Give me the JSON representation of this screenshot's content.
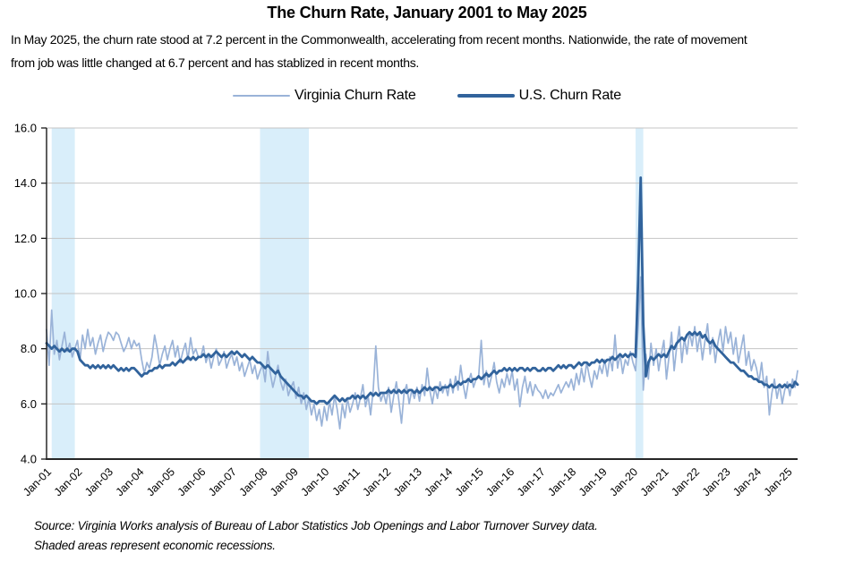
{
  "title": "The Churn Rate, January 2001 to May 2025",
  "subtitle": {
    "line1": "In May 2025, the churn rate stood at 7.2 percent in the Commonwealth, accelerating from recent months. Nationwide, the rate of movement",
    "line2": "from job was little changed at 6.7 percent and has stablized in recent months."
  },
  "source": {
    "line1": "Source: Virginia Works analysis of Bureau of Labor Statistics Job Openings and Labor Turnover Survey data.",
    "line2": "Shaded areas represent economic recessions."
  },
  "chart_data": {
    "type": "line",
    "title": "The Churn Rate, January 2001 to May 2025",
    "x_start": "2001-01",
    "x_end": "2025-05",
    "x_tick_labels": [
      "Jan-01",
      "Jan-02",
      "Jan-03",
      "Jan-04",
      "Jan-05",
      "Jan-06",
      "Jan-07",
      "Jan-08",
      "Jan-09",
      "Jan-10",
      "Jan-11",
      "Jan-12",
      "Jan-13",
      "Jan-14",
      "Jan-15",
      "Jan-16",
      "Jan-17",
      "Jan-18",
      "Jan-19",
      "Jan-20",
      "Jan-21",
      "Jan-22",
      "Jan-23",
      "Jan-24",
      "Jan-25"
    ],
    "ylim": [
      4.0,
      16.0
    ],
    "y_ticks": [
      4.0,
      6.0,
      8.0,
      10.0,
      12.0,
      14.0,
      16.0
    ],
    "grid": "horizontal",
    "grid_color": "#C4C4C4",
    "axis_color": "#1a1a1a",
    "band_color": "#D9EEFA",
    "recession_bands": [
      {
        "from": "2001-03",
        "to": "2001-11"
      },
      {
        "from": "2007-12",
        "to": "2009-06"
      },
      {
        "from": "2020-02",
        "to": "2020-04"
      }
    ],
    "legend_position": "top-center",
    "series": [
      {
        "name": "Virginia Churn Rate",
        "color": "#9AB3D8",
        "width": 1.7,
        "values": [
          8.7,
          7.4,
          9.4,
          7.8,
          8.3,
          7.6,
          8.1,
          8.6,
          7.9,
          8.2,
          7.7,
          8.0,
          8.3,
          7.6,
          8.5,
          8.0,
          8.7,
          8.1,
          8.4,
          7.8,
          8.2,
          8.5,
          7.9,
          8.3,
          8.6,
          8.5,
          8.3,
          8.6,
          8.5,
          8.2,
          7.9,
          8.1,
          8.4,
          8.0,
          8.3,
          8.1,
          8.2,
          7.6,
          7.1,
          7.5,
          7.3,
          7.7,
          8.5,
          8.0,
          7.4,
          7.8,
          8.1,
          7.6,
          8.0,
          8.3,
          7.7,
          8.1,
          7.5,
          7.9,
          8.2,
          7.6,
          8.4,
          7.8,
          8.0,
          7.7,
          7.7,
          8.1,
          7.5,
          7.8,
          7.3,
          7.7,
          8.0,
          7.4,
          7.6,
          7.9,
          7.3,
          7.6,
          7.8,
          7.4,
          7.7,
          7.2,
          7.5,
          7.0,
          7.3,
          7.6,
          7.1,
          7.4,
          6.9,
          7.2,
          7.4,
          6.8,
          7.9,
          7.1,
          6.6,
          7.0,
          7.4,
          6.8,
          6.5,
          6.9,
          6.3,
          6.6,
          6.8,
          6.2,
          6.6,
          6.0,
          6.4,
          5.8,
          6.2,
          5.6,
          6.0,
          5.4,
          5.8,
          5.2,
          5.9,
          5.4,
          6.1,
          5.6,
          6.3,
          5.8,
          5.1,
          6.0,
          5.5,
          6.2,
          5.7,
          6.0,
          6.4,
          5.8,
          6.2,
          6.7,
          5.9,
          6.3,
          5.6,
          6.5,
          8.1,
          6.6,
          6.1,
          6.4,
          6.0,
          6.6,
          5.7,
          6.3,
          6.8,
          6.1,
          5.3,
          6.4,
          6.7,
          6.0,
          6.5,
          6.2,
          6.6,
          6.1,
          6.7,
          6.3,
          7.3,
          6.5,
          6.0,
          6.6,
          6.2,
          6.8,
          6.4,
          6.7,
          6.3,
          6.9,
          6.4,
          7.0,
          6.5,
          7.4,
          6.7,
          6.2,
          6.8,
          7.1,
          6.6,
          6.9,
          7.0,
          8.3,
          6.7,
          7.2,
          6.6,
          7.0,
          7.5,
          6.8,
          6.4,
          6.9,
          6.6,
          7.1,
          6.7,
          7.2,
          6.5,
          6.9,
          5.9,
          6.6,
          7.0,
          6.4,
          6.8,
          6.3,
          6.7,
          6.5,
          6.4,
          6.2,
          6.5,
          6.2,
          6.4,
          6.3,
          6.5,
          6.7,
          6.4,
          6.6,
          6.8,
          6.6,
          6.9,
          6.5,
          7.1,
          6.7,
          7.3,
          6.8,
          7.5,
          7.0,
          6.6,
          7.2,
          6.9,
          7.4,
          7.1,
          7.6,
          7.0,
          7.7,
          7.2,
          8.5,
          7.3,
          7.8,
          7.1,
          7.6,
          7.4,
          7.9,
          7.5,
          7.2,
          8.8,
          10.6,
          6.5,
          7.8,
          6.9,
          8.2,
          7.4,
          8.0,
          7.2,
          7.8,
          8.3,
          6.9,
          7.7,
          8.6,
          7.2,
          8.1,
          8.8,
          7.5,
          8.4,
          7.8,
          8.6,
          8.1,
          8.8,
          7.9,
          8.5,
          7.6,
          8.3,
          8.9,
          7.8,
          8.4,
          7.5,
          8.2,
          8.7,
          7.9,
          8.8,
          8.2,
          8.6,
          7.8,
          8.4,
          7.5,
          8.0,
          8.5,
          7.4,
          7.9,
          7.2,
          7.6,
          7.3,
          6.8,
          7.5,
          6.6,
          7.0,
          5.6,
          6.4,
          6.9,
          6.2,
          6.7,
          6.0,
          6.5,
          6.8,
          6.3,
          6.9,
          6.6,
          7.2
        ]
      },
      {
        "name": "U.S. Churn Rate",
        "color": "#31639C",
        "width": 2.8,
        "values": [
          8.2,
          8.1,
          8.0,
          8.1,
          8.0,
          7.9,
          8.0,
          7.9,
          8.0,
          7.9,
          8.0,
          8.0,
          7.9,
          7.6,
          7.5,
          7.4,
          7.4,
          7.3,
          7.4,
          7.3,
          7.4,
          7.3,
          7.4,
          7.3,
          7.4,
          7.3,
          7.4,
          7.3,
          7.2,
          7.3,
          7.2,
          7.3,
          7.2,
          7.3,
          7.3,
          7.2,
          7.1,
          7.0,
          7.1,
          7.1,
          7.2,
          7.2,
          7.3,
          7.3,
          7.4,
          7.3,
          7.4,
          7.4,
          7.4,
          7.5,
          7.4,
          7.5,
          7.6,
          7.5,
          7.6,
          7.7,
          7.6,
          7.7,
          7.6,
          7.7,
          7.7,
          7.8,
          7.7,
          7.8,
          7.7,
          7.8,
          7.9,
          7.8,
          7.7,
          7.8,
          7.7,
          7.8,
          7.9,
          7.8,
          7.9,
          7.8,
          7.7,
          7.8,
          7.7,
          7.6,
          7.7,
          7.6,
          7.5,
          7.5,
          7.4,
          7.3,
          7.4,
          7.3,
          7.2,
          7.1,
          7.2,
          7.0,
          6.9,
          6.8,
          6.7,
          6.6,
          6.5,
          6.4,
          6.3,
          6.3,
          6.2,
          6.3,
          6.2,
          6.1,
          6.1,
          6.0,
          6.1,
          6.1,
          6.1,
          6.0,
          6.1,
          6.2,
          6.3,
          6.2,
          6.1,
          6.2,
          6.1,
          6.2,
          6.2,
          6.3,
          6.2,
          6.3,
          6.2,
          6.3,
          6.2,
          6.3,
          6.4,
          6.3,
          6.4,
          6.3,
          6.4,
          6.4,
          6.4,
          6.5,
          6.4,
          6.5,
          6.4,
          6.5,
          6.4,
          6.5,
          6.4,
          6.5,
          6.5,
          6.4,
          6.5,
          6.4,
          6.5,
          6.6,
          6.5,
          6.6,
          6.5,
          6.6,
          6.6,
          6.5,
          6.6,
          6.6,
          6.6,
          6.7,
          6.6,
          6.7,
          6.8,
          6.7,
          6.8,
          6.8,
          6.9,
          6.8,
          6.9,
          6.9,
          7.0,
          6.9,
          7.0,
          7.1,
          7.0,
          7.1,
          7.2,
          7.1,
          7.2,
          7.2,
          7.3,
          7.2,
          7.3,
          7.2,
          7.3,
          7.2,
          7.3,
          7.3,
          7.2,
          7.3,
          7.2,
          7.3,
          7.3,
          7.2,
          7.2,
          7.3,
          7.2,
          7.3,
          7.3,
          7.2,
          7.3,
          7.4,
          7.3,
          7.4,
          7.3,
          7.4,
          7.4,
          7.3,
          7.4,
          7.5,
          7.4,
          7.5,
          7.5,
          7.4,
          7.5,
          7.5,
          7.6,
          7.5,
          7.6,
          7.5,
          7.6,
          7.6,
          7.7,
          7.6,
          7.7,
          7.8,
          7.7,
          7.8,
          7.7,
          7.8,
          7.8,
          7.7,
          10.5,
          14.2,
          8.9,
          7.0,
          7.5,
          7.7,
          7.6,
          7.7,
          7.8,
          7.7,
          7.8,
          7.7,
          7.9,
          8.1,
          8.0,
          8.2,
          8.3,
          8.4,
          8.3,
          8.5,
          8.6,
          8.5,
          8.6,
          8.5,
          8.6,
          8.4,
          8.5,
          8.3,
          8.2,
          8.3,
          8.1,
          8.0,
          7.9,
          7.8,
          7.7,
          7.6,
          7.5,
          7.5,
          7.4,
          7.3,
          7.2,
          7.2,
          7.1,
          7.0,
          7.0,
          6.9,
          6.9,
          6.8,
          6.8,
          6.7,
          6.7,
          6.6,
          6.7,
          6.6,
          6.6,
          6.7,
          6.6,
          6.7,
          6.6,
          6.7,
          6.6,
          6.8,
          6.7
        ]
      }
    ]
  }
}
